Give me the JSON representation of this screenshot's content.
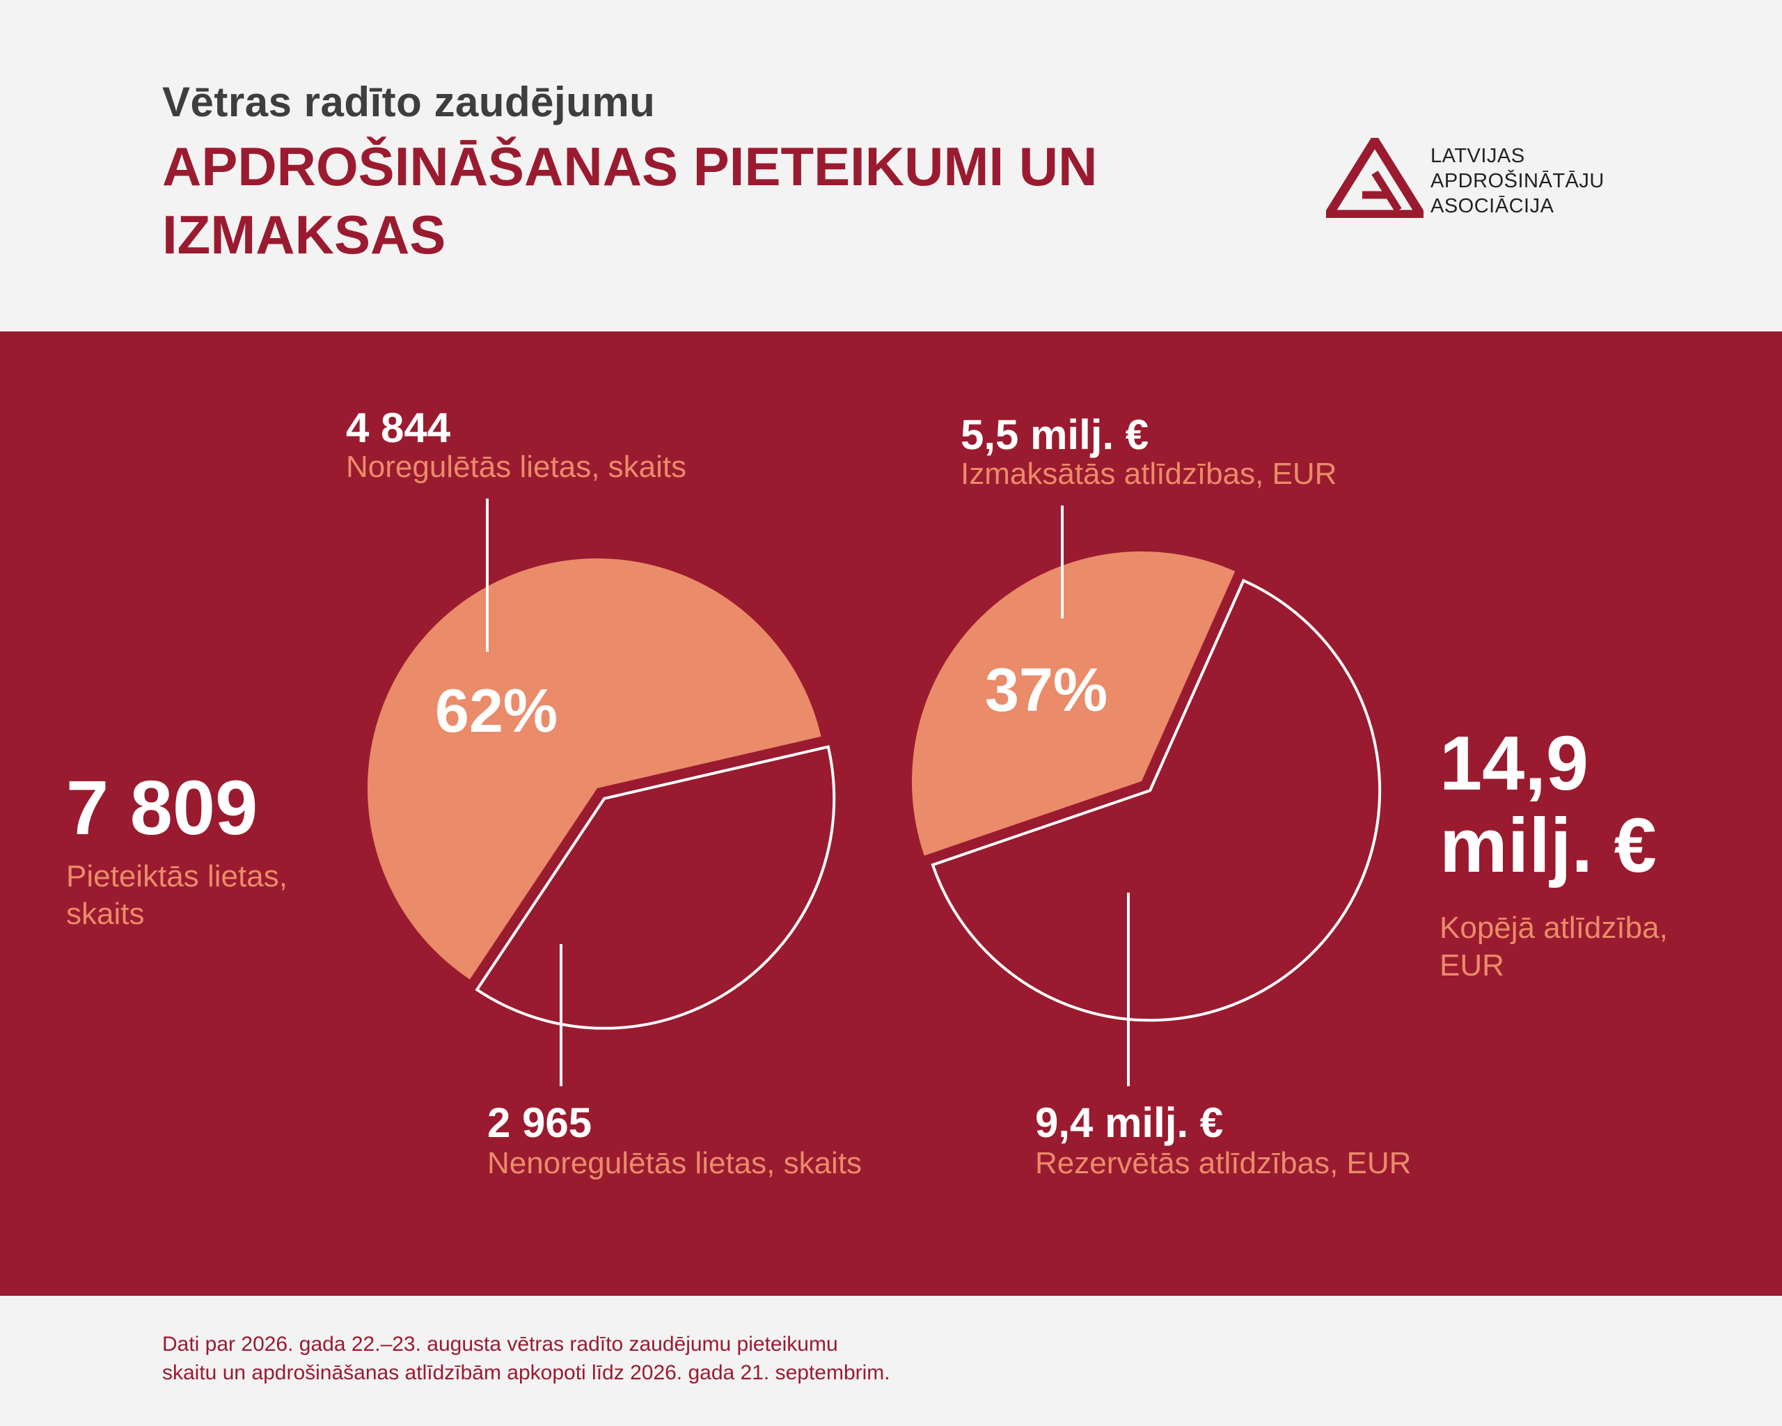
{
  "header": {
    "subtitle": "Vētras radīto zaudējumu",
    "title": "APDROŠINĀŠANAS PIETEIKUMI UN IZMAKSAS"
  },
  "logo": {
    "line1": "LATVIJAS",
    "line2": "APDROŠINĀTĀJU",
    "line3": "ASOCIĀCIJA"
  },
  "colors": {
    "brand": "#9a1b2f",
    "accent": "#ea8b6a",
    "background": "#f3f3f3"
  },
  "left_total": {
    "value": "7 809",
    "label": "Pieteiktās lietas, skaits"
  },
  "right_total": {
    "value_line1": "14,9",
    "value_line2": "milj. €",
    "label": "Kopējā atlīdzība, EUR"
  },
  "chart_data": [
    {
      "type": "pie",
      "total": 7809,
      "slices": [
        {
          "value": 4844,
          "percent": 62,
          "percent_label": "62%",
          "value_label": "4 844",
          "label": "Noregulētās lietas, skaits",
          "color": "#ea8b6a"
        },
        {
          "value": 2965,
          "percent": 38,
          "value_label": "2 965",
          "label": "Nenoregulētās lietas, skaits",
          "color": "#9a1b2f",
          "outlined": true
        }
      ]
    },
    {
      "type": "pie",
      "total": 14.9,
      "unit": "milj. €",
      "slices": [
        {
          "value": 5.5,
          "percent": 37,
          "percent_label": "37%",
          "value_label": "5,5 milj. €",
          "label": "Izmaksātās atlīdzības, EUR",
          "color": "#ea8b6a"
        },
        {
          "value": 9.4,
          "percent": 63,
          "value_label": "9,4 milj. €",
          "label": "Rezervētās atlīdzības, EUR",
          "color": "#9a1b2f",
          "outlined": true
        }
      ]
    }
  ],
  "footer": {
    "line1": "Dati par 2026. gada 22.–23. augusta vētras radīto zaudējumu pieteikumu",
    "line2": "skaitu un apdrošināšanas atlīdzībām apkopoti līdz 2026. gada 21. septembrim."
  }
}
